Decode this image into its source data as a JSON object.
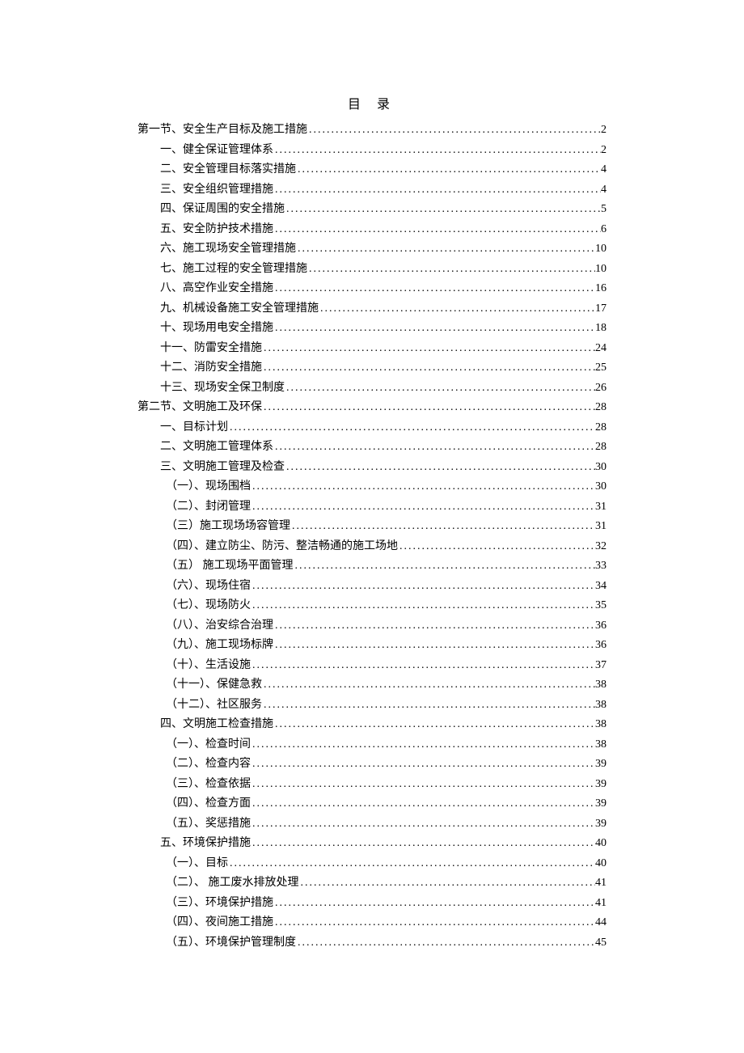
{
  "document": {
    "title": "目  录",
    "background_color": "#ffffff",
    "text_color": "#000000",
    "font_family": "SimSun",
    "title_fontsize": 16,
    "entry_fontsize": 14,
    "line_height": 24.5,
    "entries": [
      {
        "text": "第一节、安全生产目标及施工措施",
        "page": "2",
        "indent": 0
      },
      {
        "text": "一、健全保证管理体系",
        "page": "2",
        "indent": 1
      },
      {
        "text": "二、安全管理目标落实措施",
        "page": "4",
        "indent": 1
      },
      {
        "text": "三、安全组织管理措施",
        "page": "4",
        "indent": 1
      },
      {
        "text": "四、保证周围的安全措施",
        "page": "5",
        "indent": 1
      },
      {
        "text": "五、安全防护技术措施",
        "page": "6",
        "indent": 1
      },
      {
        "text": "六、施工现场安全管理措施",
        "page": "10",
        "indent": 1
      },
      {
        "text": "七、施工过程的安全管理措施",
        "page": "10",
        "indent": 1
      },
      {
        "text": "八、高空作业安全措施",
        "page": "16",
        "indent": 1
      },
      {
        "text": "九、机械设备施工安全管理措施",
        "page": "17",
        "indent": 1
      },
      {
        "text": "十、现场用电安全措施",
        "page": "18",
        "indent": 1
      },
      {
        "text": "十一、防雷安全措施",
        "page": "24",
        "indent": 1
      },
      {
        "text": "十二、消防安全措施",
        "page": "25",
        "indent": 1
      },
      {
        "text": "十三、现场安全保卫制度",
        "page": "26",
        "indent": 1
      },
      {
        "text": "第二节、文明施工及环保",
        "page": "28",
        "indent": 0
      },
      {
        "text": "一、目标计划",
        "page": "28",
        "indent": 1
      },
      {
        "text": "二、文明施工管理体系",
        "page": "28",
        "indent": 1
      },
      {
        "text": "三、文明施工管理及检查",
        "page": "30",
        "indent": 1
      },
      {
        "text": "（一）、现场围档",
        "page": "30",
        "indent": 2
      },
      {
        "text": "（二）、封闭管理",
        "page": "31",
        "indent": 2
      },
      {
        "text": "（三）施工现场场容管理",
        "page": "31",
        "indent": 2
      },
      {
        "text": "（四）、建立防尘、防污、整洁畅通的施工场地",
        "page": "32",
        "indent": 2
      },
      {
        "text": "（五）  施工现场平面管理",
        "page": "33",
        "indent": 2
      },
      {
        "text": "（六）、现场住宿",
        "page": "34",
        "indent": 2
      },
      {
        "text": "（七）、现场防火",
        "page": "35",
        "indent": 2
      },
      {
        "text": "（八）、治安综合治理",
        "page": "36",
        "indent": 2
      },
      {
        "text": "（九）、施工现场标牌",
        "page": "36",
        "indent": 2
      },
      {
        "text": "（十）、生活设施",
        "page": "37",
        "indent": 2
      },
      {
        "text": "（十一）、保健急救",
        "page": "38",
        "indent": 2
      },
      {
        "text": "（十二）、社区服务",
        "page": "38",
        "indent": 2
      },
      {
        "text": "四、文明施工检查措施",
        "page": "38",
        "indent": 1
      },
      {
        "text": "（一）、检查时间",
        "page": "38",
        "indent": 2
      },
      {
        "text": "（二）、检查内容",
        "page": "39",
        "indent": 2
      },
      {
        "text": "（三）、检查依据",
        "page": "39",
        "indent": 2
      },
      {
        "text": "（四）、检查方面",
        "page": "39",
        "indent": 2
      },
      {
        "text": "（五）、奖惩措施",
        "page": "39",
        "indent": 2
      },
      {
        "text": "五、环境保护措施",
        "page": "40",
        "indent": 1
      },
      {
        "text": "（一）、目标",
        "page": "40",
        "indent": 2
      },
      {
        "text": "（二）、 施工废水排放处理",
        "page": "41",
        "indent": 2
      },
      {
        "text": "（三）、环境保护措施",
        "page": "41",
        "indent": 2
      },
      {
        "text": "（四）、夜间施工措施",
        "page": "44",
        "indent": 2
      },
      {
        "text": "（五）、环境保护管理制度",
        "page": "45",
        "indent": 2
      }
    ]
  }
}
